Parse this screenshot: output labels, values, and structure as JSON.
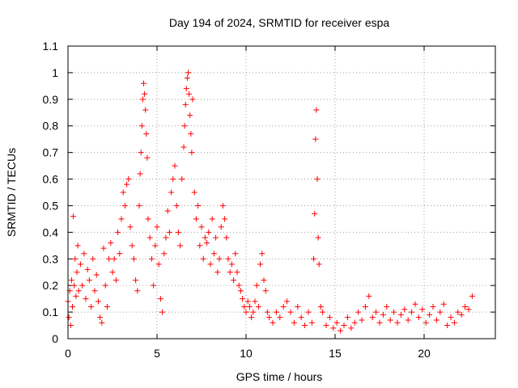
{
  "chart_data": {
    "type": "scatter",
    "title": "Day 194 of 2024, SRMTID for receiver espa",
    "xlabel": "GPS time / hours",
    "ylabel": "SRMTID / TECUs",
    "xlim": [
      0,
      24
    ],
    "ylim": [
      0,
      1.1
    ],
    "xticks": [
      "0",
      "5",
      "10",
      "15",
      "20"
    ],
    "yticks": [
      "0",
      "0.1",
      "0.2",
      "0.3",
      "0.4",
      "0.5",
      "0.6",
      "0.7",
      "0.8",
      "0.9",
      "1",
      "1.1"
    ],
    "grid": true,
    "marker": "+",
    "color": "#ff0000",
    "series": [
      {
        "name": "SRMTID",
        "points": [
          [
            0.0,
            0.14
          ],
          [
            0.05,
            0.08
          ],
          [
            0.1,
            0.18
          ],
          [
            0.15,
            0.05
          ],
          [
            0.2,
            0.22
          ],
          [
            0.25,
            0.12
          ],
          [
            0.3,
            0.46
          ],
          [
            0.35,
            0.2
          ],
          [
            0.4,
            0.3
          ],
          [
            0.45,
            0.16
          ],
          [
            0.5,
            0.25
          ],
          [
            0.55,
            0.35
          ],
          [
            0.6,
            0.18
          ],
          [
            0.7,
            0.28
          ],
          [
            0.8,
            0.2
          ],
          [
            0.9,
            0.32
          ],
          [
            1.0,
            0.15
          ],
          [
            1.1,
            0.26
          ],
          [
            1.2,
            0.22
          ],
          [
            1.3,
            0.12
          ],
          [
            1.4,
            0.3
          ],
          [
            1.5,
            0.18
          ],
          [
            1.6,
            0.24
          ],
          [
            1.7,
            0.14
          ],
          [
            1.8,
            0.08
          ],
          [
            1.9,
            0.06
          ],
          [
            2.0,
            0.34
          ],
          [
            2.1,
            0.2
          ],
          [
            2.2,
            0.12
          ],
          [
            2.3,
            0.3
          ],
          [
            2.4,
            0.36
          ],
          [
            2.5,
            0.25
          ],
          [
            2.6,
            0.3
          ],
          [
            2.7,
            0.22
          ],
          [
            2.8,
            0.4
          ],
          [
            2.9,
            0.32
          ],
          [
            3.0,
            0.45
          ],
          [
            3.1,
            0.55
          ],
          [
            3.2,
            0.5
          ],
          [
            3.3,
            0.58
          ],
          [
            3.4,
            0.6
          ],
          [
            3.5,
            0.42
          ],
          [
            3.6,
            0.35
          ],
          [
            3.7,
            0.3
          ],
          [
            3.8,
            0.22
          ],
          [
            3.9,
            0.18
          ],
          [
            4.0,
            0.5
          ],
          [
            4.05,
            0.62
          ],
          [
            4.1,
            0.7
          ],
          [
            4.15,
            0.8
          ],
          [
            4.2,
            0.9
          ],
          [
            4.25,
            0.96
          ],
          [
            4.3,
            0.92
          ],
          [
            4.35,
            0.86
          ],
          [
            4.4,
            0.77
          ],
          [
            4.45,
            0.68
          ],
          [
            4.5,
            0.45
          ],
          [
            4.6,
            0.38
          ],
          [
            4.7,
            0.3
          ],
          [
            4.8,
            0.2
          ],
          [
            4.9,
            0.35
          ],
          [
            5.0,
            0.42
          ],
          [
            5.1,
            0.28
          ],
          [
            5.2,
            0.15
          ],
          [
            5.3,
            0.1
          ],
          [
            5.4,
            0.32
          ],
          [
            5.5,
            0.38
          ],
          [
            5.6,
            0.48
          ],
          [
            5.7,
            0.4
          ],
          [
            5.8,
            0.55
          ],
          [
            5.9,
            0.6
          ],
          [
            6.0,
            0.65
          ],
          [
            6.1,
            0.5
          ],
          [
            6.2,
            0.4
          ],
          [
            6.3,
            0.35
          ],
          [
            6.4,
            0.6
          ],
          [
            6.5,
            0.72
          ],
          [
            6.55,
            0.8
          ],
          [
            6.6,
            0.88
          ],
          [
            6.65,
            0.94
          ],
          [
            6.7,
            0.98
          ],
          [
            6.75,
            1.0
          ],
          [
            6.8,
            0.92
          ],
          [
            6.85,
            0.84
          ],
          [
            6.9,
            0.77
          ],
          [
            6.95,
            0.7
          ],
          [
            7.0,
            0.9
          ],
          [
            7.1,
            0.55
          ],
          [
            7.2,
            0.45
          ],
          [
            7.3,
            0.5
          ],
          [
            7.4,
            0.35
          ],
          [
            7.5,
            0.42
          ],
          [
            7.6,
            0.3
          ],
          [
            7.7,
            0.38
          ],
          [
            7.8,
            0.36
          ],
          [
            7.9,
            0.4
          ],
          [
            8.0,
            0.28
          ],
          [
            8.1,
            0.45
          ],
          [
            8.2,
            0.32
          ],
          [
            8.3,
            0.38
          ],
          [
            8.4,
            0.25
          ],
          [
            8.5,
            0.3
          ],
          [
            8.6,
            0.42
          ],
          [
            8.7,
            0.5
          ],
          [
            8.8,
            0.45
          ],
          [
            8.9,
            0.38
          ],
          [
            9.0,
            0.3
          ],
          [
            9.1,
            0.25
          ],
          [
            9.2,
            0.28
          ],
          [
            9.3,
            0.22
          ],
          [
            9.4,
            0.32
          ],
          [
            9.5,
            0.25
          ],
          [
            9.6,
            0.2
          ],
          [
            9.7,
            0.18
          ],
          [
            9.8,
            0.15
          ],
          [
            9.9,
            0.12
          ],
          [
            10.0,
            0.1
          ],
          [
            10.1,
            0.14
          ],
          [
            10.2,
            0.12
          ],
          [
            10.3,
            0.08
          ],
          [
            10.4,
            0.1
          ],
          [
            10.5,
            0.14
          ],
          [
            10.6,
            0.2
          ],
          [
            10.7,
            0.12
          ],
          [
            10.8,
            0.28
          ],
          [
            10.9,
            0.32
          ],
          [
            11.0,
            0.22
          ],
          [
            11.1,
            0.18
          ],
          [
            11.2,
            0.1
          ],
          [
            11.3,
            0.08
          ],
          [
            11.5,
            0.06
          ],
          [
            11.7,
            0.1
          ],
          [
            11.9,
            0.08
          ],
          [
            12.1,
            0.12
          ],
          [
            12.3,
            0.14
          ],
          [
            12.5,
            0.1
          ],
          [
            12.7,
            0.06
          ],
          [
            12.9,
            0.12
          ],
          [
            13.1,
            0.08
          ],
          [
            13.3,
            0.05
          ],
          [
            13.5,
            0.1
          ],
          [
            13.7,
            0.06
          ],
          [
            13.8,
            0.3
          ],
          [
            13.85,
            0.47
          ],
          [
            13.9,
            0.75
          ],
          [
            13.95,
            0.86
          ],
          [
            14.0,
            0.6
          ],
          [
            14.05,
            0.38
          ],
          [
            14.1,
            0.28
          ],
          [
            14.2,
            0.12
          ],
          [
            14.3,
            0.1
          ],
          [
            14.5,
            0.05
          ],
          [
            14.7,
            0.08
          ],
          [
            14.9,
            0.04
          ],
          [
            15.1,
            0.06
          ],
          [
            15.3,
            0.03
          ],
          [
            15.5,
            0.05
          ],
          [
            15.7,
            0.08
          ],
          [
            15.9,
            0.04
          ],
          [
            16.1,
            0.06
          ],
          [
            16.3,
            0.1
          ],
          [
            16.5,
            0.07
          ],
          [
            16.7,
            0.12
          ],
          [
            16.9,
            0.16
          ],
          [
            17.1,
            0.08
          ],
          [
            17.3,
            0.1
          ],
          [
            17.5,
            0.06
          ],
          [
            17.7,
            0.09
          ],
          [
            17.9,
            0.12
          ],
          [
            18.1,
            0.07
          ],
          [
            18.3,
            0.1
          ],
          [
            18.5,
            0.06
          ],
          [
            18.7,
            0.09
          ],
          [
            18.9,
            0.11
          ],
          [
            19.1,
            0.07
          ],
          [
            19.3,
            0.1
          ],
          [
            19.5,
            0.13
          ],
          [
            19.7,
            0.08
          ],
          [
            19.9,
            0.11
          ],
          [
            20.1,
            0.06
          ],
          [
            20.3,
            0.09
          ],
          [
            20.5,
            0.12
          ],
          [
            20.7,
            0.07
          ],
          [
            20.9,
            0.1
          ],
          [
            21.1,
            0.13
          ],
          [
            21.3,
            0.05
          ],
          [
            21.5,
            0.08
          ],
          [
            21.7,
            0.06
          ],
          [
            21.9,
            0.1
          ],
          [
            22.1,
            0.09
          ],
          [
            22.3,
            0.12
          ],
          [
            22.5,
            0.11
          ],
          [
            22.7,
            0.16
          ]
        ]
      }
    ]
  }
}
